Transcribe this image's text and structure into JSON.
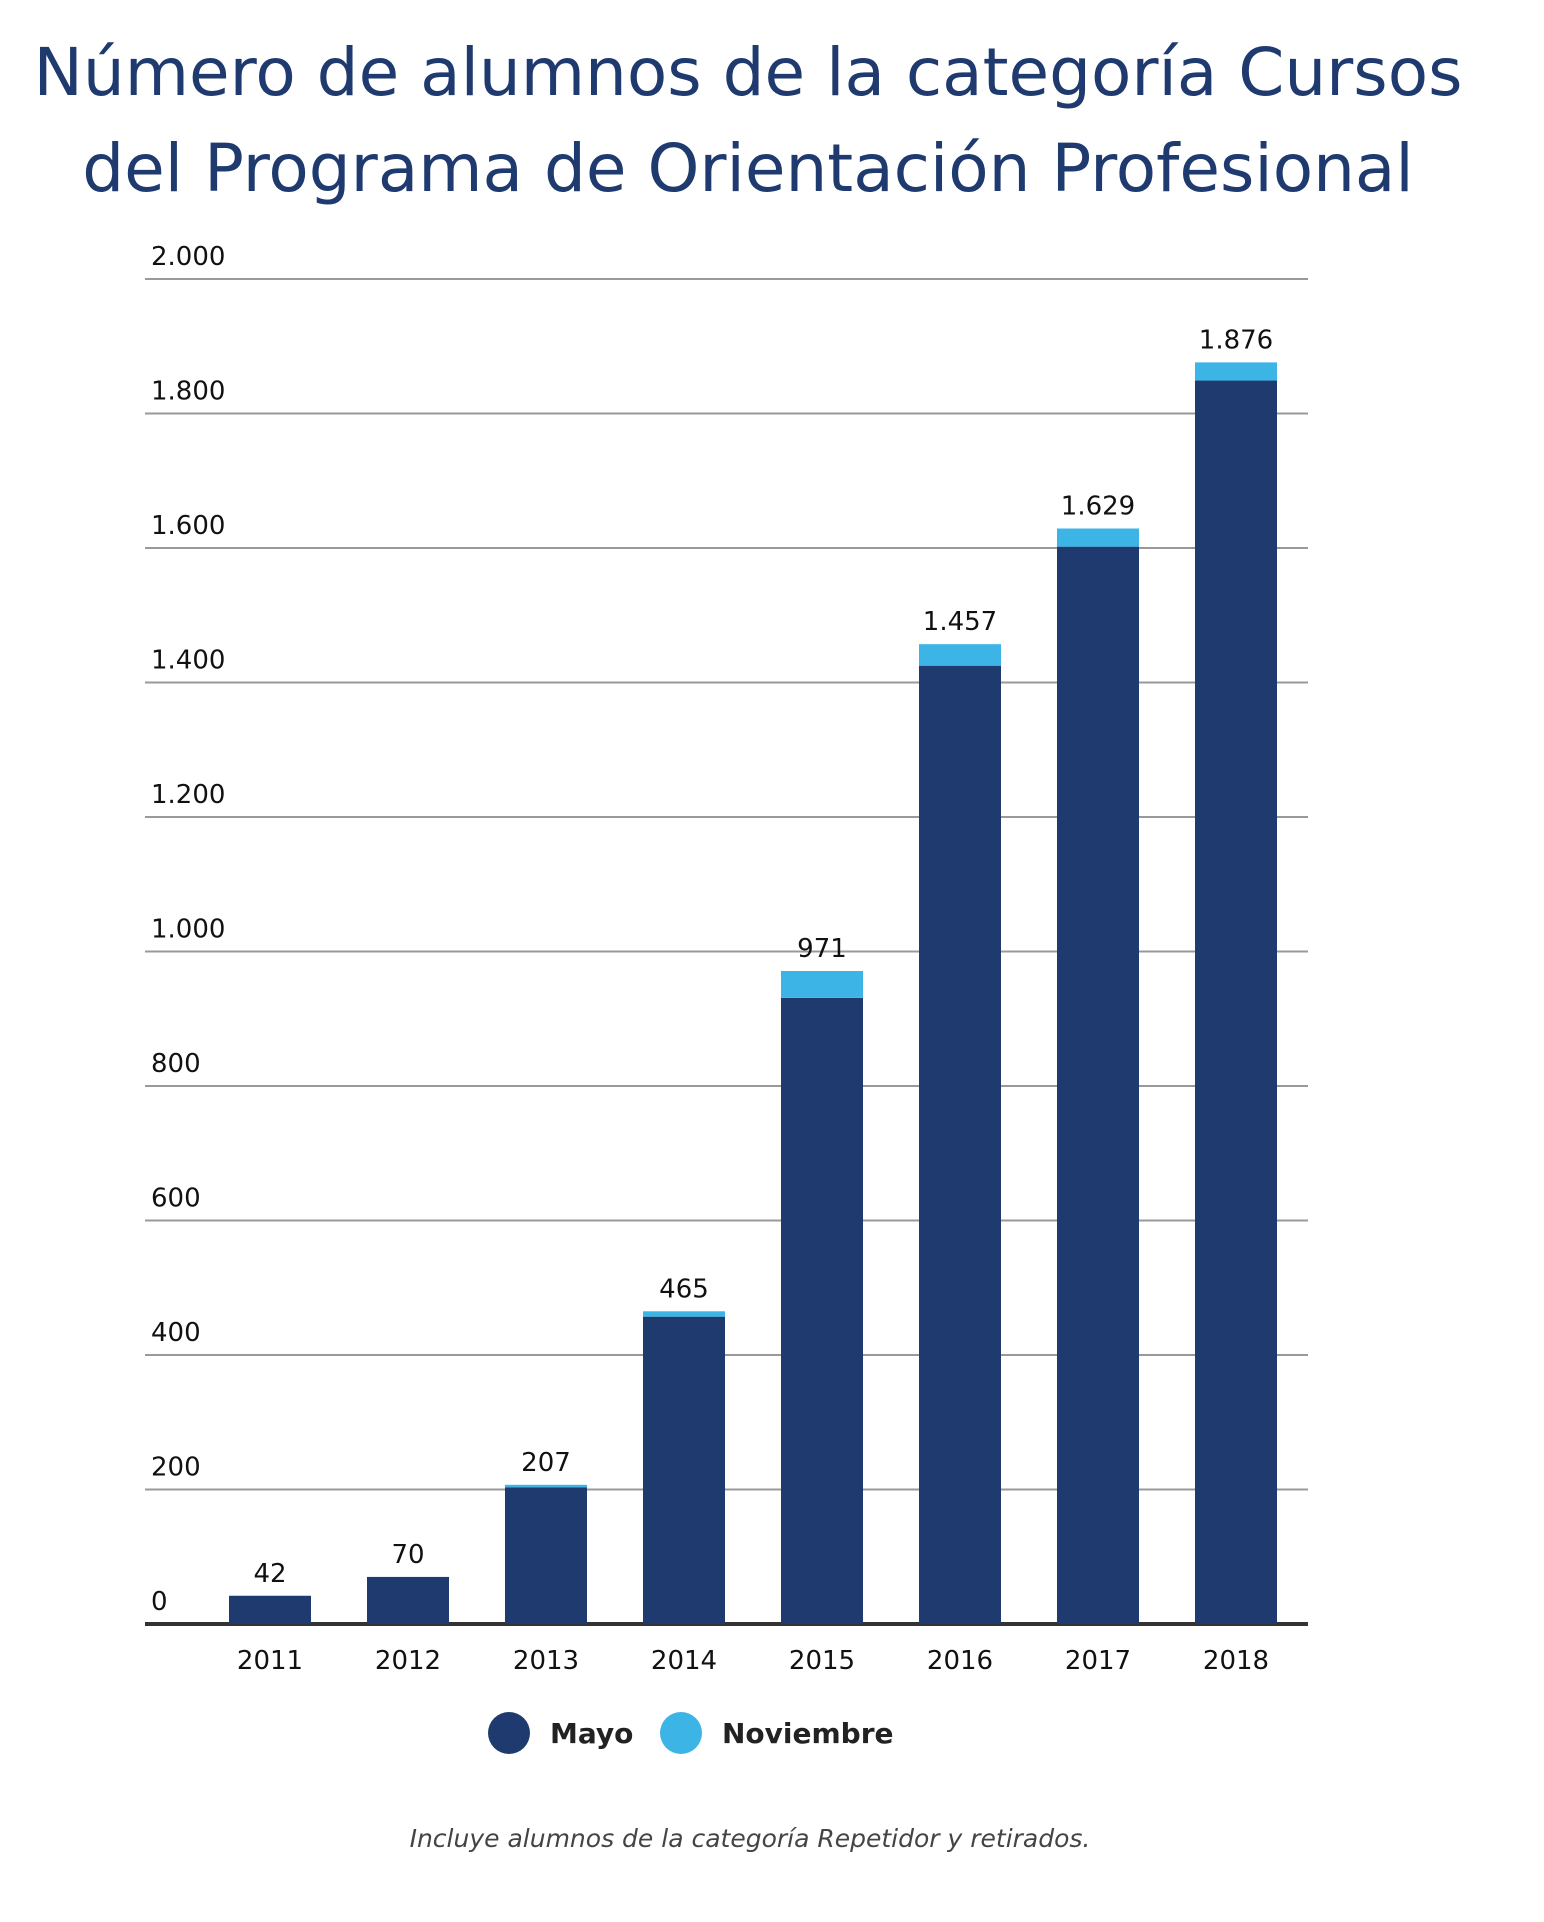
{
  "chart_data": {
    "type": "stacked_bar",
    "title": "Número de alumnos de la categoría Cursos del Programa de Orientación Profesional",
    "categories": [
      "2011",
      "2012",
      "2013",
      "2014",
      "2015",
      "2016",
      "2017",
      "2018"
    ],
    "series": [
      {
        "name": "Mayo",
        "color": "#1f3a6e",
        "values": [
          42,
          70,
          203,
          457,
          931,
          1425,
          1602,
          1849
        ]
      },
      {
        "name": "Noviembre",
        "color": "#3db4e6",
        "values": [
          0,
          0,
          4,
          8,
          40,
          32,
          27,
          27
        ]
      }
    ],
    "totals": [
      42,
      70,
      207,
      465,
      971,
      1457,
      1629,
      1876
    ],
    "value_labels": [
      "42",
      "70",
      "207",
      "465",
      "971",
      "1.457",
      "1.629",
      "1.876"
    ],
    "ylim": [
      0,
      2000
    ],
    "yticks": [
      0,
      200,
      400,
      600,
      800,
      {
        "value": 1000,
        "label": "1.000"
      },
      {
        "value": 1200,
        "label": "1.200"
      },
      {
        "value": 1400,
        "label": "1.400"
      },
      {
        "value": 1600,
        "label": "1.600"
      },
      {
        "value": 1800,
        "label": "1.800"
      },
      {
        "value": 2000,
        "label": "2.000"
      }
    ],
    "grid": true,
    "legend": "bottom",
    "note": "Incluye alumnos de la categoría Repetidor y retirados."
  }
}
